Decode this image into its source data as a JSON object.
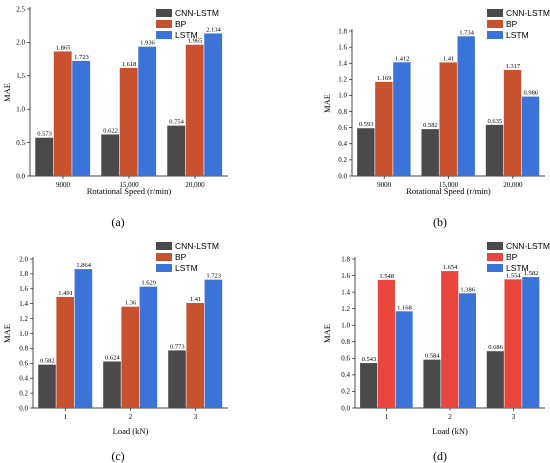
{
  "chart_data": [
    {
      "type": "bar",
      "caption": "(a)",
      "xlabel": "Rotational Speed (r/min)",
      "ylabel": "MAE",
      "categories": [
        "9000",
        "15,000",
        "20,000"
      ],
      "ylim": [
        0,
        2.5
      ],
      "yticks": [
        "0.0",
        "0.5",
        "1.0",
        "1.5",
        "2.0",
        "2.5"
      ],
      "legend_position": "top-right",
      "series": [
        {
          "name": "CNN-LSTM",
          "values": [
            0.573,
            0.622,
            0.754
          ],
          "labels": [
            "0.573",
            "0.622",
            "0.754"
          ],
          "color": "#4a4a4a"
        },
        {
          "name": "BP",
          "values": [
            1.865,
            1.618,
            1.965
          ],
          "labels": [
            "1.865",
            "1.618",
            "1.965"
          ],
          "color": "#c8522e"
        },
        {
          "name": "LSTM",
          "values": [
            1.723,
            1.936,
            2.134
          ],
          "labels": [
            "1.723",
            "1.936",
            "2.134"
          ],
          "color": "#3b73d9"
        }
      ]
    },
    {
      "type": "bar",
      "caption": "(b)",
      "xlabel": "Rotational Speed (r/min)",
      "ylabel": "MAE",
      "categories": [
        "9000",
        "15,000",
        "20,000"
      ],
      "ylim": [
        0,
        1.8
      ],
      "yticks": [
        "0.0",
        "0.2",
        "0.4",
        "0.6",
        "0.8",
        "1.0",
        "1.2",
        "1.4",
        "1.6",
        "1.8"
      ],
      "legend_position": "top-right",
      "series": [
        {
          "name": "CNN-LSTM",
          "values": [
            0.593,
            0.582,
            0.635
          ],
          "labels": [
            "0.593",
            "0.582",
            "0.635"
          ],
          "color": "#4a4a4a"
        },
        {
          "name": "BP",
          "values": [
            1.169,
            1.41,
            1.317
          ],
          "labels": [
            "1.169",
            "1.41",
            "1.317"
          ],
          "color": "#c8522e"
        },
        {
          "name": "LSTM",
          "values": [
            1.412,
            1.734,
            0.986
          ],
          "labels": [
            "1.412",
            "1.734",
            "0.986"
          ],
          "color": "#3b73d9"
        }
      ]
    },
    {
      "type": "bar",
      "caption": "(c)",
      "xlabel": "Load (kN)",
      "ylabel": "MAE",
      "categories": [
        "1",
        "2",
        "3"
      ],
      "ylim": [
        0,
        2.0
      ],
      "yticks": [
        "0.0",
        "0.2",
        "0.4",
        "0.6",
        "0.8",
        "1.0",
        "1.2",
        "1.4",
        "1.6",
        "1.8",
        "2.0"
      ],
      "legend_position": "top-right",
      "series": [
        {
          "name": "CNN-LSTM",
          "values": [
            0.582,
            0.624,
            0.773
          ],
          "labels": [
            "0.582",
            "0.624",
            "0.773"
          ],
          "color": "#4a4a4a"
        },
        {
          "name": "BP",
          "values": [
            1.491,
            1.36,
            1.41
          ],
          "labels": [
            "1.491",
            "1.36",
            "1.41"
          ],
          "color": "#c8522e"
        },
        {
          "name": "LSTM",
          "values": [
            1.864,
            1.629,
            1.723
          ],
          "labels": [
            "1.864",
            "1.629",
            "1.723"
          ],
          "color": "#3b73d9"
        }
      ]
    },
    {
      "type": "bar",
      "caption": "(d)",
      "xlabel": "Load (kN)",
      "ylabel": "MAE",
      "categories": [
        "1",
        "2",
        "3"
      ],
      "ylim": [
        0,
        1.8
      ],
      "yticks": [
        "0.0",
        "0.2",
        "0.4",
        "0.6",
        "0.8",
        "1.0",
        "1.2",
        "1.4",
        "1.6",
        "1.8"
      ],
      "legend_position": "top-right",
      "series": [
        {
          "name": "CNN-LSTM",
          "values": [
            0.543,
            0.584,
            0.686
          ],
          "labels": [
            "0.543",
            "0.584",
            "0.686"
          ],
          "color": "#4a4a4a"
        },
        {
          "name": "BP",
          "values": [
            1.548,
            1.654,
            1.554
          ],
          "labels": [
            "1.548",
            "1.654",
            "1.554"
          ],
          "color": "#e8453c"
        },
        {
          "name": "LSTM",
          "values": [
            1.168,
            1.386,
            1.582
          ],
          "labels": [
            "1.168",
            "1.386",
            "1.582"
          ],
          "color": "#3b73d9"
        }
      ]
    }
  ]
}
